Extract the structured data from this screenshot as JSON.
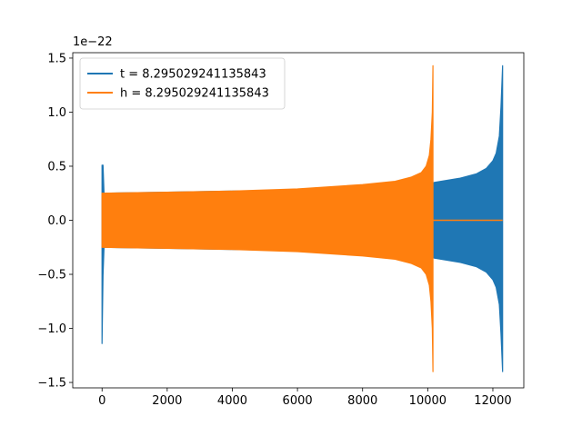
{
  "chart_data": {
    "type": "line",
    "title": "",
    "xlabel": "",
    "ylabel": "",
    "xlim": [
      -900,
      12950
    ],
    "ylim": [
      -1.55,
      1.55
    ],
    "y_offset_label": "1e−22",
    "x_ticks": [
      0,
      2000,
      4000,
      6000,
      8000,
      10000,
      12000
    ],
    "x_tick_labels": [
      "0",
      "2000",
      "4000",
      "6000",
      "8000",
      "10000",
      "12000"
    ],
    "y_ticks": [
      1.5,
      1.0,
      0.5,
      0.0,
      -0.5,
      -1.0,
      -1.5
    ],
    "y_tick_labels": [
      "1.5",
      "1.0",
      "0.5",
      "0.0",
      "−0.5",
      "−1.0",
      "−1.5"
    ],
    "grid": false,
    "legend_position": "top-left",
    "series": [
      {
        "name": "t = 8.295029241135843",
        "color": "#1f77b4",
        "envelope": {
          "x": [
            0,
            30,
            60,
            100,
            2000,
            4000,
            6000,
            8000,
            9500,
            10150,
            10200,
            11000,
            11500,
            11800,
            12000,
            12100,
            12200,
            12250,
            12300
          ],
          "upper": [
            0.51,
            0.51,
            0.25,
            0.25,
            0.26,
            0.27,
            0.28,
            0.3,
            0.32,
            0.34,
            0.35,
            0.39,
            0.43,
            0.48,
            0.55,
            0.62,
            0.78,
            1.05,
            1.43
          ],
          "lower": [
            -1.14,
            -0.51,
            -0.25,
            -0.25,
            -0.26,
            -0.27,
            -0.28,
            -0.3,
            -0.32,
            -0.34,
            -0.35,
            -0.39,
            -0.43,
            -0.48,
            -0.55,
            -0.62,
            -0.78,
            -1.05,
            -1.4
          ]
        },
        "tail_flat": [
          12300,
          12300
        ]
      },
      {
        "name": "h = 8.295029241135843",
        "color": "#ff7f0e",
        "envelope": {
          "x": [
            0,
            2000,
            4000,
            6000,
            8000,
            9000,
            9500,
            9800,
            9950,
            10050,
            10100,
            10140,
            10160
          ],
          "upper": [
            0.25,
            0.26,
            0.27,
            0.29,
            0.33,
            0.36,
            0.4,
            0.44,
            0.5,
            0.6,
            0.75,
            1.0,
            1.43
          ],
          "lower": [
            -0.25,
            -0.26,
            -0.27,
            -0.29,
            -0.33,
            -0.36,
            -0.4,
            -0.44,
            -0.5,
            -0.6,
            -0.75,
            -1.0,
            -1.4
          ]
        },
        "tail_flat": [
          10160,
          12300
        ]
      }
    ]
  }
}
